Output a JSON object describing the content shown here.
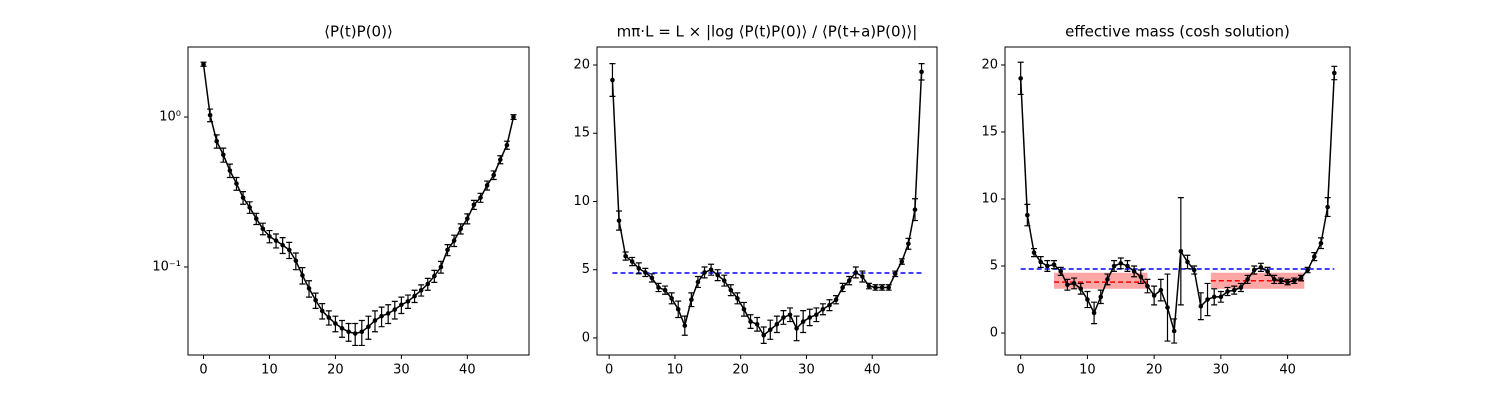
{
  "chart_data": [
    {
      "type": "line",
      "title": "⟨P(t)P(0)⟩",
      "yscale": "log",
      "x": [
        0,
        1,
        2,
        3,
        4,
        5,
        6,
        7,
        8,
        9,
        10,
        11,
        12,
        13,
        14,
        15,
        16,
        17,
        18,
        19,
        20,
        21,
        22,
        23,
        24,
        25,
        26,
        27,
        28,
        29,
        30,
        31,
        32,
        33,
        34,
        35,
        36,
        37,
        38,
        39,
        40,
        41,
        42,
        43,
        44,
        45,
        46,
        47
      ],
      "series": [
        {
          "color": "#000000",
          "values": [
            2.25,
            1.03,
            0.69,
            0.56,
            0.44,
            0.36,
            0.29,
            0.25,
            0.21,
            0.18,
            0.16,
            0.15,
            0.14,
            0.13,
            0.11,
            0.088,
            0.072,
            0.06,
            0.051,
            0.046,
            0.042,
            0.039,
            0.037,
            0.036,
            0.037,
            0.04,
            0.044,
            0.047,
            0.049,
            0.052,
            0.056,
            0.059,
            0.064,
            0.07,
            0.077,
            0.087,
            0.1,
            0.13,
            0.15,
            0.18,
            0.21,
            0.26,
            0.29,
            0.35,
            0.41,
            0.52,
            0.65,
            1.0
          ],
          "errors": [
            0.07,
            0.1,
            0.07,
            0.06,
            0.045,
            0.035,
            0.028,
            0.022,
            0.018,
            0.016,
            0.015,
            0.016,
            0.017,
            0.016,
            0.014,
            0.011,
            0.009,
            0.007,
            0.006,
            0.005,
            0.005,
            0.005,
            0.005,
            0.006,
            0.007,
            0.007,
            0.007,
            0.007,
            0.007,
            0.007,
            0.007,
            0.006,
            0.006,
            0.006,
            0.007,
            0.008,
            0.009,
            0.011,
            0.013,
            0.014,
            0.016,
            0.018,
            0.02,
            0.024,
            0.027,
            0.032,
            0.04,
            0.035
          ]
        }
      ],
      "xlim": [
        -2.35,
        49.35
      ],
      "ylim": [
        0.0259,
        2.93
      ],
      "xticks": [
        0,
        10,
        20,
        30,
        40
      ],
      "yticks": [
        {
          "value": 1,
          "label": "10⁰"
        },
        {
          "value": 0.1,
          "label": "10⁻¹"
        }
      ]
    },
    {
      "type": "line",
      "title": "mπ·L = L × |log ⟨P(t)P(0)⟩ / ⟨P(t+a)P(0)⟩|",
      "x": [
        0.5,
        1.5,
        2.5,
        3.5,
        4.5,
        5.5,
        6.5,
        7.5,
        8.5,
        9.5,
        10.5,
        11.5,
        12.5,
        13.5,
        14.5,
        15.5,
        16.5,
        17.5,
        18.5,
        19.5,
        20.5,
        21.5,
        22.5,
        23.5,
        24.5,
        25.5,
        26.5,
        27.5,
        28.5,
        29.5,
        30.5,
        31.5,
        32.5,
        33.5,
        34.5,
        35.5,
        36.5,
        37.5,
        38.5,
        39.5,
        40.5,
        41.5,
        42.5,
        43.5,
        44.5,
        45.5,
        46.5,
        47.5
      ],
      "series": [
        {
          "color": "#000000",
          "values": [
            18.9,
            8.6,
            6.0,
            5.6,
            5.1,
            4.8,
            4.4,
            3.7,
            3.5,
            2.9,
            2.1,
            0.9,
            2.8,
            4.1,
            4.8,
            5.0,
            4.6,
            4.2,
            3.5,
            2.9,
            2.1,
            1.2,
            1.0,
            0.2,
            0.6,
            1.0,
            1.5,
            1.7,
            0.7,
            1.2,
            1.5,
            1.7,
            2.1,
            2.4,
            2.8,
            3.7,
            4.2,
            4.8,
            4.5,
            3.8,
            3.7,
            3.7,
            3.7,
            4.7,
            5.6,
            6.9,
            9.4,
            19.5
          ],
          "errors": [
            1.2,
            0.7,
            0.3,
            0.3,
            0.4,
            0.3,
            0.3,
            0.3,
            0.3,
            0.4,
            0.6,
            0.7,
            0.5,
            0.4,
            0.4,
            0.4,
            0.4,
            0.4,
            0.4,
            0.4,
            0.5,
            0.5,
            0.5,
            0.6,
            0.7,
            0.6,
            0.5,
            0.5,
            0.9,
            0.8,
            0.6,
            0.5,
            0.4,
            0.4,
            0.3,
            0.3,
            0.3,
            0.4,
            0.4,
            0.2,
            0.2,
            0.2,
            0.2,
            0.2,
            0.2,
            0.4,
            0.8,
            0.6
          ]
        }
      ],
      "hlines": [
        {
          "y": 4.76,
          "x": [
            0.5,
            47.5
          ],
          "color": "#0000ff"
        }
      ],
      "xlim": [
        -1.85,
        49.85
      ],
      "ylim": [
        -1.25,
        21.32
      ],
      "xticks": [
        0,
        10,
        20,
        30,
        40
      ],
      "yticks": [
        0,
        5,
        10,
        15,
        20
      ]
    },
    {
      "type": "line",
      "title": "effective mass (cosh solution)",
      "x": [
        0,
        1,
        2,
        3,
        4,
        5,
        6,
        7,
        8,
        9,
        10,
        11,
        12,
        13,
        14,
        15,
        16,
        17,
        18,
        19,
        20,
        21,
        22,
        23,
        24,
        25,
        26,
        27,
        28,
        29,
        30,
        31,
        32,
        33,
        34,
        35,
        36,
        37,
        38,
        39,
        40,
        41,
        42,
        43,
        44,
        45,
        46,
        47
      ],
      "series": [
        {
          "color": "#000000",
          "values": [
            19.0,
            8.8,
            6.0,
            5.3,
            5.0,
            5.1,
            4.6,
            3.6,
            3.7,
            3.3,
            2.5,
            1.5,
            2.7,
            4.0,
            5.0,
            5.2,
            5.0,
            4.6,
            4.2,
            3.5,
            2.8,
            3.2,
            1.9,
            0.15,
            6.1,
            5.3,
            4.7,
            2.0,
            2.5,
            2.7,
            2.7,
            3.1,
            3.2,
            3.4,
            4.0,
            4.7,
            4.9,
            4.6,
            4.0,
            3.9,
            3.8,
            3.9,
            4.1,
            4.7,
            5.7,
            6.7,
            9.4,
            19.4
          ],
          "errors": [
            1.2,
            0.8,
            0.3,
            0.4,
            0.4,
            0.3,
            0.3,
            0.4,
            0.4,
            0.4,
            0.6,
            0.8,
            0.5,
            0.4,
            0.4,
            0.4,
            0.4,
            0.4,
            0.5,
            0.5,
            0.7,
            0.8,
            2.5,
            0.9,
            4.0,
            0.5,
            0.3,
            1.0,
            1.2,
            0.6,
            0.4,
            0.3,
            0.3,
            0.3,
            0.3,
            0.3,
            0.3,
            0.3,
            0.3,
            0.2,
            0.2,
            0.2,
            0.2,
            0.2,
            0.3,
            0.4,
            0.7,
            0.5
          ]
        }
      ],
      "hlines": [
        {
          "y": 4.78,
          "x": [
            0,
            47
          ],
          "color": "#0000ff"
        }
      ],
      "fits": [
        {
          "x": [
            5,
            19
          ],
          "value": 3.8,
          "lower": 3.3,
          "upper": 4.5,
          "color": "#ff0000"
        },
        {
          "x": [
            28.5,
            42.5
          ],
          "value": 3.9,
          "lower": 3.3,
          "upper": 4.5,
          "color": "#ff0000"
        }
      ],
      "xlim": [
        -2.35,
        49.35
      ],
      "ylim": [
        -1.64,
        21.34
      ],
      "xticks": [
        0,
        10,
        20,
        30,
        40
      ],
      "yticks": [
        0,
        5,
        10,
        15,
        20
      ]
    }
  ]
}
